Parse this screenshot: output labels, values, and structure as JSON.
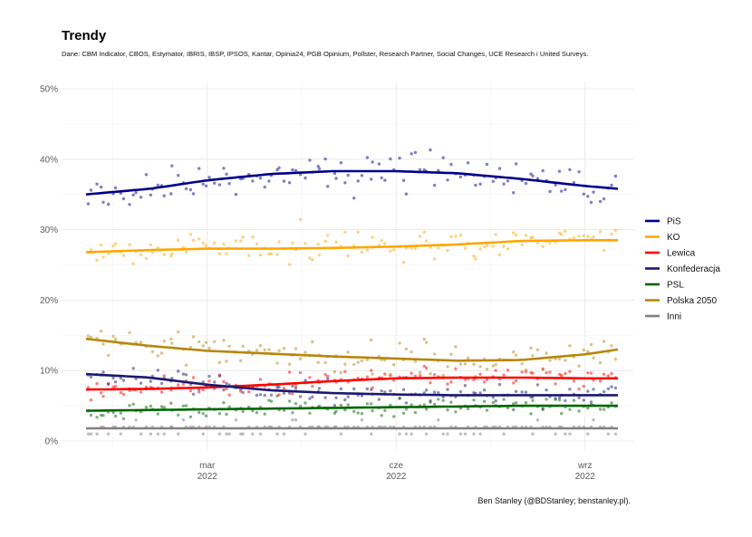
{
  "chart_data": {
    "type": "scatter",
    "title": "Trendy",
    "subtitle": "Dane: CBM Indicator, CBOS, Estymator, IBRIS, IBSP, IPSOS, Kantar, Opinia24, PGB Opinium, Pollster, Research Partner, Social Changes, UCE Research i United Surveys.",
    "caption": "Ben Stanley (@BDStanley; benstanley.pl).",
    "xlabel": "",
    "ylabel": "",
    "ylim": [
      0,
      50
    ],
    "yticks": [
      "0%",
      "10%",
      "20%",
      "30%",
      "40%",
      "50%"
    ],
    "xticks": [
      {
        "date": "2022-03-01",
        "line1": "mar",
        "line2": "2022"
      },
      {
        "date": "2022-06-01",
        "line1": "cze",
        "line2": "2022"
      },
      {
        "date": "2022-09-01",
        "line1": "wrz",
        "line2": "2022"
      }
    ],
    "xrange": [
      "2022-01-01",
      "2022-09-17"
    ],
    "grid": true,
    "legend_position": "right",
    "series": [
      {
        "name": "PiS",
        "color": "#00008b",
        "trend": [
          [
            "2022-01-01",
            35.0
          ],
          [
            "2022-02-01",
            35.8
          ],
          [
            "2022-03-01",
            37.0
          ],
          [
            "2022-04-01",
            37.9
          ],
          [
            "2022-05-01",
            38.3
          ],
          [
            "2022-06-01",
            38.3
          ],
          [
            "2022-07-01",
            38.0
          ],
          [
            "2022-08-01",
            37.2
          ],
          [
            "2022-09-01",
            36.2
          ],
          [
            "2022-09-17",
            35.8
          ]
        ],
        "spread": 2.2
      },
      {
        "name": "KO",
        "color": "#ffa500",
        "trend": [
          [
            "2022-01-01",
            26.8
          ],
          [
            "2022-02-01",
            27.1
          ],
          [
            "2022-03-01",
            27.3
          ],
          [
            "2022-04-01",
            27.3
          ],
          [
            "2022-05-01",
            27.4
          ],
          [
            "2022-06-01",
            27.6
          ],
          [
            "2022-07-01",
            27.9
          ],
          [
            "2022-08-01",
            28.4
          ],
          [
            "2022-09-01",
            28.5
          ],
          [
            "2022-09-17",
            28.5
          ]
        ],
        "spread": 1.8
      },
      {
        "name": "Lewica",
        "color": "#ff0000",
        "trend": [
          [
            "2022-01-01",
            7.3
          ],
          [
            "2022-02-01",
            7.4
          ],
          [
            "2022-03-01",
            7.6
          ],
          [
            "2022-04-01",
            8.0
          ],
          [
            "2022-05-01",
            8.5
          ],
          [
            "2022-06-01",
            8.9
          ],
          [
            "2022-07-01",
            9.0
          ],
          [
            "2022-08-01",
            9.0
          ],
          [
            "2022-09-01",
            8.9
          ],
          [
            "2022-09-17",
            8.9
          ]
        ],
        "spread": 1.2
      },
      {
        "name": "Konfederacja",
        "color": "#191970",
        "trend": [
          [
            "2022-01-01",
            9.5
          ],
          [
            "2022-02-01",
            9.0
          ],
          [
            "2022-03-01",
            8.0
          ],
          [
            "2022-04-01",
            7.2
          ],
          [
            "2022-05-01",
            6.8
          ],
          [
            "2022-06-01",
            6.6
          ],
          [
            "2022-07-01",
            6.5
          ],
          [
            "2022-08-01",
            6.5
          ],
          [
            "2022-09-01",
            6.5
          ],
          [
            "2022-09-17",
            6.5
          ]
        ],
        "spread": 1.2
      },
      {
        "name": "PSL",
        "color": "#006400",
        "trend": [
          [
            "2022-01-01",
            4.3
          ],
          [
            "2022-02-01",
            4.4
          ],
          [
            "2022-03-01",
            4.5
          ],
          [
            "2022-04-01",
            4.6
          ],
          [
            "2022-05-01",
            4.7
          ],
          [
            "2022-06-01",
            4.8
          ],
          [
            "2022-07-01",
            4.9
          ],
          [
            "2022-08-01",
            5.0
          ],
          [
            "2022-09-01",
            5.0
          ],
          [
            "2022-09-17",
            5.0
          ]
        ],
        "spread": 1.0
      },
      {
        "name": "Polska 2050",
        "color": "#b8860b",
        "trend": [
          [
            "2022-01-01",
            14.5
          ],
          [
            "2022-02-01",
            13.5
          ],
          [
            "2022-03-01",
            12.8
          ],
          [
            "2022-04-01",
            12.4
          ],
          [
            "2022-05-01",
            12.0
          ],
          [
            "2022-06-01",
            11.7
          ],
          [
            "2022-07-01",
            11.4
          ],
          [
            "2022-08-01",
            11.5
          ],
          [
            "2022-09-01",
            12.3
          ],
          [
            "2022-09-17",
            13.0
          ]
        ],
        "spread": 1.8
      },
      {
        "name": "Inni",
        "color": "#808080",
        "trend": [
          [
            "2022-01-01",
            1.8
          ],
          [
            "2022-02-01",
            1.8
          ],
          [
            "2022-03-01",
            1.8
          ],
          [
            "2022-04-01",
            1.8
          ],
          [
            "2022-05-01",
            1.8
          ],
          [
            "2022-06-01",
            1.8
          ],
          [
            "2022-07-01",
            1.8
          ],
          [
            "2022-08-01",
            1.8
          ],
          [
            "2022-09-01",
            1.8
          ],
          [
            "2022-09-17",
            1.8
          ]
        ],
        "spread": 0.7
      }
    ]
  }
}
